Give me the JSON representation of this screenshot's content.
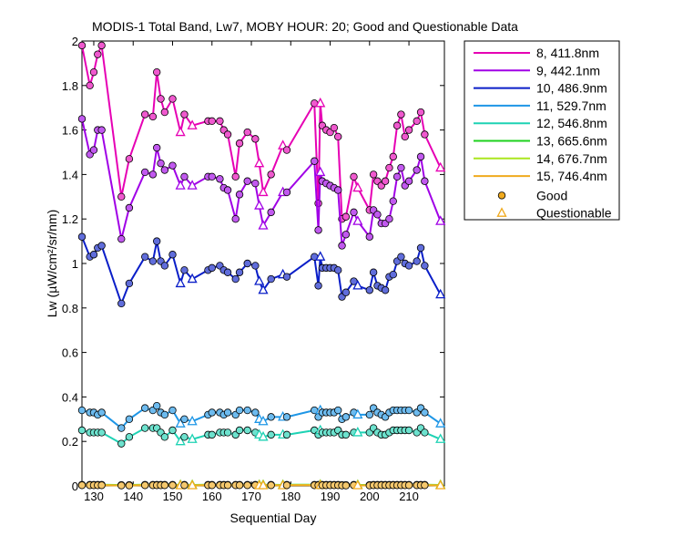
{
  "chart_data": {
    "type": "line",
    "title": "MODIS-1 Total Band,  Lw7, MOBY HOUR: 20;  Good and Questionable Data",
    "xlabel": "Sequential Day",
    "ylabel": "Lw (µW/cm²/sr/nm)",
    "xlim": [
      127,
      219
    ],
    "ylim": [
      0,
      2
    ],
    "xticks": [
      130,
      140,
      150,
      160,
      170,
      180,
      190,
      200,
      210
    ],
    "yticks": [
      0,
      0.2,
      0.4,
      0.6,
      0.8,
      1,
      1.2,
      1.4,
      1.6,
      1.8,
      2
    ],
    "x": [
      127,
      129,
      130,
      131,
      132,
      137,
      139,
      143,
      145,
      146,
      147,
      148,
      150,
      152,
      153,
      155,
      159,
      160,
      162,
      163,
      164,
      166,
      167,
      169,
      171,
      172,
      173,
      175,
      178,
      179,
      186,
      187,
      187.5,
      188,
      189,
      190,
      191,
      192,
      193,
      194,
      196,
      197,
      200,
      201,
      202,
      203,
      204,
      205,
      206,
      207,
      208,
      209,
      210,
      212,
      213,
      214,
      218
    ],
    "quality": [
      "good",
      "good",
      "good",
      "good",
      "good",
      "good",
      "good",
      "good",
      "good",
      "good",
      "good",
      "good",
      "good",
      "questionable",
      "good",
      "questionable",
      "good",
      "good",
      "good",
      "good",
      "good",
      "good",
      "good",
      "good",
      "good",
      "questionable",
      "questionable",
      "good",
      "questionable",
      "good",
      "good",
      "good",
      "questionable",
      "good",
      "good",
      "good",
      "good",
      "good",
      "good",
      "good",
      "good",
      "questionable",
      "good",
      "good",
      "good",
      "good",
      "good",
      "good",
      "good",
      "good",
      "good",
      "good",
      "good",
      "good",
      "good",
      "good",
      "questionable"
    ],
    "series": [
      {
        "name": "8, 411.8nm",
        "color": "#e600b4",
        "values": [
          1.98,
          1.8,
          1.86,
          1.94,
          1.98,
          1.3,
          1.47,
          1.67,
          1.66,
          1.86,
          1.74,
          1.68,
          1.74,
          1.59,
          1.67,
          1.62,
          1.64,
          1.64,
          1.64,
          1.6,
          1.58,
          1.39,
          1.54,
          1.59,
          1.56,
          1.45,
          1.32,
          1.4,
          1.53,
          1.51,
          1.72,
          1.27,
          1.72,
          1.62,
          1.6,
          1.59,
          1.61,
          1.57,
          1.2,
          1.21,
          1.39,
          1.34,
          1.24,
          1.4,
          1.37,
          1.35,
          1.37,
          1.43,
          1.48,
          1.62,
          1.67,
          1.57,
          1.6,
          1.64,
          1.68,
          1.58,
          1.43
        ]
      },
      {
        "name": "9, 442.1nm",
        "color": "#a000e6",
        "values": [
          1.65,
          1.49,
          1.51,
          1.6,
          1.6,
          1.11,
          1.25,
          1.41,
          1.4,
          1.52,
          1.45,
          1.42,
          1.44,
          1.35,
          1.39,
          1.35,
          1.39,
          1.39,
          1.38,
          1.34,
          1.33,
          1.2,
          1.31,
          1.37,
          1.36,
          1.26,
          1.17,
          1.23,
          1.32,
          1.32,
          1.46,
          1.15,
          1.41,
          1.37,
          1.36,
          1.35,
          1.34,
          1.33,
          1.08,
          1.13,
          1.23,
          1.19,
          1.12,
          1.24,
          1.22,
          1.18,
          1.18,
          1.2,
          1.28,
          1.39,
          1.43,
          1.35,
          1.37,
          1.42,
          1.48,
          1.37,
          1.19
        ]
      },
      {
        "name": "10, 486.9nm",
        "color": "#0a1ec8",
        "values": [
          1.12,
          1.03,
          1.04,
          1.07,
          1.08,
          0.82,
          0.91,
          1.03,
          1.01,
          1.1,
          1.01,
          0.99,
          1.04,
          0.91,
          0.97,
          0.93,
          0.97,
          0.98,
          0.99,
          0.97,
          0.96,
          0.93,
          0.96,
          1.0,
          0.99,
          0.92,
          0.88,
          0.93,
          0.95,
          0.94,
          1.03,
          0.9,
          1.03,
          0.98,
          0.98,
          0.98,
          0.98,
          0.97,
          0.85,
          0.87,
          0.92,
          0.9,
          0.88,
          0.96,
          0.9,
          0.89,
          0.88,
          0.94,
          0.95,
          1.01,
          1.03,
          1.0,
          0.99,
          1.01,
          1.07,
          0.99,
          0.86
        ]
      },
      {
        "name": "11, 529.7nm",
        "color": "#1e96e6",
        "values": [
          0.34,
          0.33,
          0.33,
          0.32,
          0.33,
          0.26,
          0.3,
          0.35,
          0.34,
          0.36,
          0.33,
          0.32,
          0.34,
          0.28,
          0.3,
          0.29,
          0.32,
          0.33,
          0.33,
          0.32,
          0.33,
          0.32,
          0.34,
          0.34,
          0.33,
          0.3,
          0.29,
          0.31,
          0.31,
          0.31,
          0.34,
          0.31,
          0.34,
          0.33,
          0.33,
          0.33,
          0.33,
          0.34,
          0.3,
          0.31,
          0.33,
          0.32,
          0.32,
          0.35,
          0.33,
          0.32,
          0.31,
          0.33,
          0.34,
          0.34,
          0.34,
          0.34,
          0.34,
          0.33,
          0.35,
          0.33,
          0.28
        ]
      },
      {
        "name": "12, 546.8nm",
        "color": "#1ed2b4",
        "values": [
          0.25,
          0.24,
          0.24,
          0.24,
          0.24,
          0.19,
          0.22,
          0.26,
          0.26,
          0.26,
          0.24,
          0.22,
          0.25,
          0.2,
          0.22,
          0.21,
          0.23,
          0.23,
          0.24,
          0.24,
          0.24,
          0.23,
          0.25,
          0.25,
          0.24,
          0.23,
          0.22,
          0.23,
          0.23,
          0.23,
          0.25,
          0.23,
          0.25,
          0.24,
          0.24,
          0.24,
          0.24,
          0.25,
          0.23,
          0.23,
          0.24,
          0.24,
          0.24,
          0.26,
          0.24,
          0.23,
          0.23,
          0.24,
          0.25,
          0.25,
          0.25,
          0.25,
          0.25,
          0.24,
          0.26,
          0.24,
          0.21
        ]
      },
      {
        "name": "13, 665.6nm",
        "color": "#1ed21e",
        "values": [
          0.005,
          0.005,
          0.005,
          0.005,
          0.005,
          0.004,
          0.004,
          0.005,
          0.005,
          0.005,
          0.005,
          0.005,
          0.005,
          0.004,
          0.005,
          0.004,
          0.005,
          0.005,
          0.005,
          0.005,
          0.005,
          0.005,
          0.005,
          0.005,
          0.005,
          0.004,
          0.004,
          0.005,
          0.004,
          0.005,
          0.005,
          0.005,
          0.005,
          0.005,
          0.005,
          0.005,
          0.005,
          0.005,
          0.004,
          0.004,
          0.005,
          0.004,
          0.004,
          0.005,
          0.005,
          0.005,
          0.005,
          0.005,
          0.005,
          0.005,
          0.005,
          0.005,
          0.005,
          0.005,
          0.005,
          0.005,
          0.004
        ]
      },
      {
        "name": "14, 676.7nm",
        "color": "#aae61e",
        "values": [
          0.004,
          0.004,
          0.004,
          0.004,
          0.004,
          0.003,
          0.003,
          0.004,
          0.004,
          0.004,
          0.004,
          0.004,
          0.004,
          0.003,
          0.004,
          0.003,
          0.004,
          0.004,
          0.004,
          0.004,
          0.004,
          0.004,
          0.004,
          0.004,
          0.004,
          0.003,
          0.003,
          0.004,
          0.003,
          0.004,
          0.004,
          0.004,
          0.004,
          0.004,
          0.004,
          0.004,
          0.004,
          0.004,
          0.003,
          0.003,
          0.004,
          0.003,
          0.003,
          0.004,
          0.004,
          0.004,
          0.004,
          0.004,
          0.004,
          0.004,
          0.004,
          0.004,
          0.004,
          0.004,
          0.004,
          0.004,
          0.003
        ]
      },
      {
        "name": "15, 746.4nm",
        "color": "#f0aa1e",
        "values": [
          0.003,
          0.003,
          0.003,
          0.003,
          0.003,
          0.002,
          0.002,
          0.003,
          0.003,
          0.003,
          0.003,
          0.003,
          0.003,
          0.002,
          0.003,
          0.002,
          0.003,
          0.003,
          0.003,
          0.003,
          0.003,
          0.003,
          0.003,
          0.003,
          0.003,
          0.002,
          0.002,
          0.003,
          0.002,
          0.003,
          0.003,
          0.003,
          0.003,
          0.003,
          0.003,
          0.003,
          0.003,
          0.003,
          0.002,
          0.002,
          0.003,
          0.002,
          0.002,
          0.003,
          0.003,
          0.003,
          0.003,
          0.003,
          0.003,
          0.003,
          0.003,
          0.003,
          0.003,
          0.003,
          0.003,
          0.003,
          0.002
        ]
      }
    ],
    "legend": {
      "placement": "outside-right-top",
      "marker_entries": [
        {
          "label": "Good",
          "marker": "circle",
          "color": "#f0aa1e"
        },
        {
          "label": "Questionable",
          "marker": "triangle",
          "color": "#f0aa1e"
        }
      ]
    },
    "grid": false
  }
}
